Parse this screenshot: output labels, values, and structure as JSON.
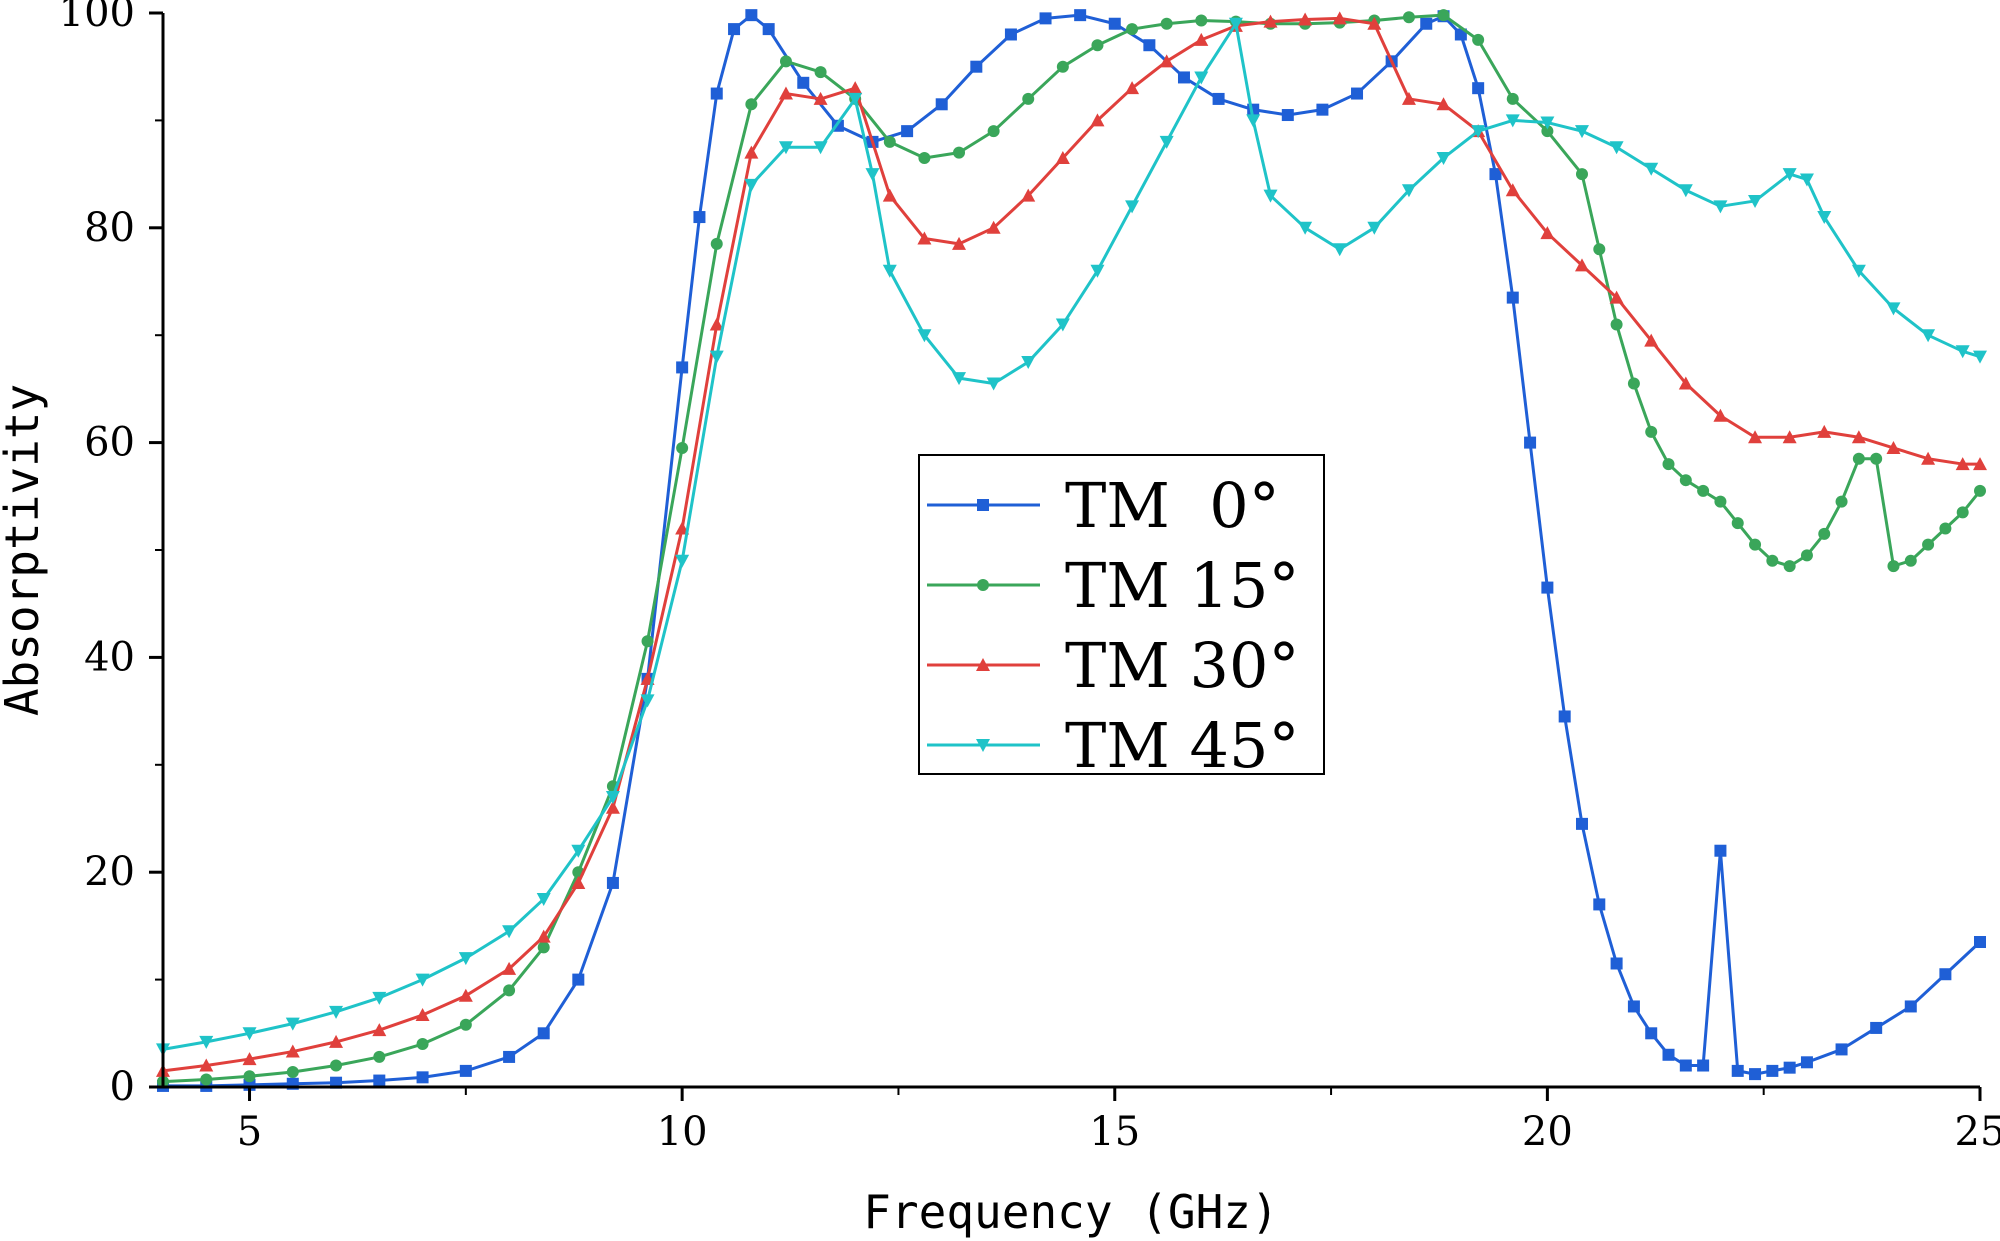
{
  "chart_data": {
    "type": "line",
    "title": "",
    "xlabel": "Frequency (GHz)",
    "ylabel": "Absorptivity",
    "xlim": [
      4,
      25
    ],
    "ylim": [
      0,
      100
    ],
    "xticks": [
      5,
      10,
      15,
      20,
      25
    ],
    "yticks": [
      0,
      20,
      40,
      60,
      80,
      100
    ],
    "grid": false,
    "legend_position": "center",
    "series": [
      {
        "name": "TM  0°",
        "color": "#1f5fd6",
        "marker": "square",
        "x": [
          4,
          4.5,
          5,
          5.5,
          6,
          6.5,
          7,
          7.5,
          8,
          8.4,
          8.8,
          9.2,
          9.6,
          10,
          10.2,
          10.4,
          10.6,
          10.8,
          11,
          11.4,
          11.8,
          12.2,
          12.6,
          13,
          13.4,
          13.8,
          14.2,
          14.6,
          15,
          15.4,
          15.8,
          16.2,
          16.6,
          17,
          17.4,
          17.8,
          18.2,
          18.6,
          18.8,
          19,
          19.2,
          19.4,
          19.6,
          19.8,
          20,
          20.2,
          20.4,
          20.6,
          20.8,
          21,
          21.2,
          21.4,
          21.6,
          21.8,
          22,
          22.2,
          22.4,
          22.6,
          22.8,
          23,
          23.4,
          23.8,
          24.2,
          24.6,
          25
        ],
        "y": [
          0.1,
          0.1,
          0.2,
          0.3,
          0.4,
          0.6,
          0.9,
          1.5,
          2.8,
          5,
          10,
          19,
          38,
          67,
          81,
          92.5,
          98.5,
          99.8,
          98.5,
          93.5,
          89.5,
          88,
          89,
          91.5,
          95,
          98,
          99.5,
          99.8,
          99,
          97,
          94,
          92,
          91,
          90.5,
          91,
          92.5,
          95.5,
          99,
          99.7,
          98,
          93,
          85,
          73.5,
          60,
          46.5,
          34.5,
          24.5,
          17,
          11.5,
          7.5,
          5,
          3,
          2,
          2,
          22,
          1.5,
          1.2,
          1.5,
          1.8,
          2.3,
          3.5,
          5.5,
          7.5,
          10.5,
          13.5
        ]
      },
      {
        "name": "TM 15°",
        "color": "#3aa65a",
        "marker": "circle",
        "x": [
          4,
          4.5,
          5,
          5.5,
          6,
          6.5,
          7,
          7.5,
          8,
          8.4,
          8.8,
          9.2,
          9.6,
          10,
          10.4,
          10.8,
          11.2,
          11.6,
          12,
          12.4,
          12.8,
          13.2,
          13.6,
          14,
          14.4,
          14.8,
          15.2,
          15.6,
          16,
          16.4,
          16.8,
          17.2,
          17.6,
          18,
          18.4,
          18.8,
          19.2,
          19.6,
          20,
          20.4,
          20.6,
          20.8,
          21,
          21.2,
          21.4,
          21.6,
          21.8,
          22,
          22.2,
          22.4,
          22.6,
          22.8,
          23,
          23.2,
          23.4,
          23.6,
          23.8,
          24,
          24.2,
          24.4,
          24.6,
          24.8,
          25
        ],
        "y": [
          0.5,
          0.7,
          1,
          1.4,
          2,
          2.8,
          4,
          5.8,
          9,
          13,
          20,
          28,
          41.5,
          59.5,
          78.5,
          91.5,
          95.5,
          94.5,
          92,
          88,
          86.5,
          87,
          89,
          92,
          95,
          97,
          98.5,
          99,
          99.3,
          99.2,
          99,
          99,
          99.1,
          99.3,
          99.6,
          99.8,
          97.5,
          92,
          89,
          85,
          78,
          71,
          65.5,
          61,
          58,
          56.5,
          55.5,
          54.5,
          52.5,
          50.5,
          49,
          48.5,
          49.5,
          51.5,
          54.5,
          58.5,
          58.5,
          48.5,
          49,
          50.5,
          52,
          53.5,
          55.5
        ]
      },
      {
        "name": "TM 30°",
        "color": "#e0403c",
        "marker": "triangle-up",
        "x": [
          4,
          4.5,
          5,
          5.5,
          6,
          6.5,
          7,
          7.5,
          8,
          8.4,
          8.8,
          9.2,
          9.6,
          10,
          10.4,
          10.8,
          11.2,
          11.6,
          12,
          12.4,
          12.8,
          13.2,
          13.6,
          14,
          14.4,
          14.8,
          15.2,
          15.6,
          16,
          16.4,
          16.8,
          17.2,
          17.6,
          18,
          18.4,
          18.8,
          19.2,
          19.6,
          20,
          20.4,
          20.8,
          21.2,
          21.6,
          22,
          22.4,
          22.8,
          23.2,
          23.6,
          24,
          24.4,
          24.8,
          25
        ],
        "y": [
          1.5,
          2,
          2.6,
          3.3,
          4.2,
          5.3,
          6.7,
          8.5,
          11,
          14,
          19,
          26,
          38,
          52,
          71,
          87,
          92.5,
          92,
          93,
          83,
          79,
          78.5,
          80,
          83,
          86.5,
          90,
          93,
          95.5,
          97.5,
          98.8,
          99.2,
          99.4,
          99.5,
          99,
          92,
          91.5,
          89,
          83.5,
          79.5,
          76.5,
          73.5,
          69.5,
          65.5,
          62.5,
          60.5,
          60.5,
          61,
          60.5,
          59.5,
          58.5,
          58,
          58
        ]
      },
      {
        "name": "TM 45°",
        "color": "#1fc3c8",
        "marker": "triangle-down",
        "x": [
          4,
          4.5,
          5,
          5.5,
          6,
          6.5,
          7,
          7.5,
          8,
          8.4,
          8.8,
          9.2,
          9.6,
          10,
          10.4,
          10.8,
          11.2,
          11.6,
          12,
          12.2,
          12.4,
          12.8,
          13.2,
          13.6,
          14,
          14.4,
          14.8,
          15.2,
          15.6,
          16,
          16.4,
          16.6,
          16.8,
          17.2,
          17.6,
          18,
          18.4,
          18.8,
          19.2,
          19.6,
          20,
          20.4,
          20.8,
          21.2,
          21.6,
          22,
          22.4,
          22.8,
          23,
          23.2,
          23.6,
          24,
          24.4,
          24.8,
          25
        ],
        "y": [
          3.5,
          4.2,
          5,
          5.9,
          7,
          8.3,
          10,
          12,
          14.5,
          17.5,
          22,
          27,
          36,
          49,
          68,
          84,
          87.5,
          87.5,
          92,
          85,
          76,
          70,
          66,
          65.5,
          67.5,
          71,
          76,
          82,
          88,
          94,
          99,
          90,
          83,
          80,
          78,
          80,
          83.5,
          86.5,
          89,
          90,
          89.8,
          89,
          87.5,
          85.5,
          83.5,
          82,
          82.5,
          85,
          84.5,
          81,
          76,
          72.5,
          70,
          68.5,
          68
        ]
      }
    ]
  }
}
